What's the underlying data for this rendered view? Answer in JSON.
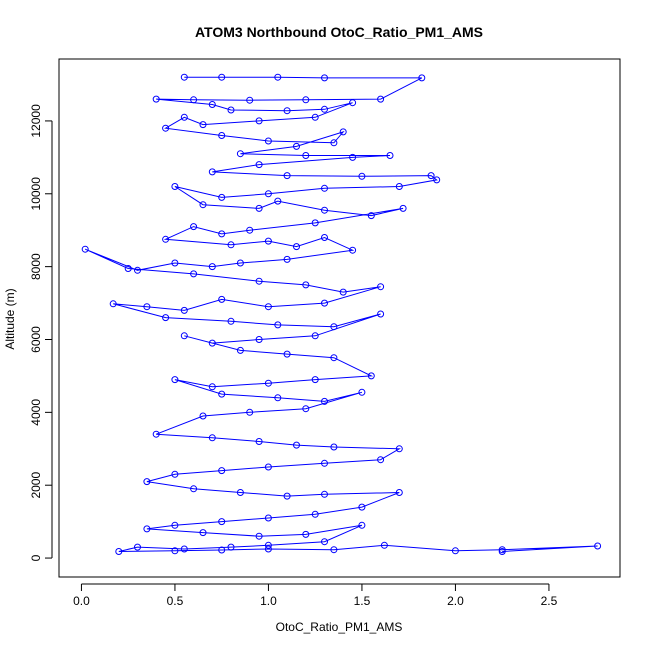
{
  "chart_data": {
    "type": "scatter",
    "title": "ATOM3 Northbound OtoC_Ratio_PM1_AMS",
    "xlabel": "OtoC_Ratio_PM1_AMS",
    "ylabel": "Altitude (m)",
    "xlim": [
      -0.12,
      2.88
    ],
    "ylim": [
      -520,
      13700
    ],
    "xticks": [
      0.0,
      0.5,
      1.0,
      1.5,
      2.0,
      2.5
    ],
    "xtick_labels": [
      "0.0",
      "0.5",
      "1.0",
      "1.5",
      "2.0",
      "2.5"
    ],
    "yticks": [
      0,
      2000,
      4000,
      6000,
      8000,
      10000,
      12000
    ],
    "ytick_labels": [
      "0",
      "2000",
      "4000",
      "6000",
      "8000",
      "10000",
      "12000"
    ],
    "grid": false,
    "legend": "none",
    "marker": "open-circle",
    "connected": true,
    "colors": {
      "series": "#0000ff",
      "axis": "#000000",
      "background": "#ffffff"
    },
    "series": [
      {
        "points": [
          [
            0.55,
            13200
          ],
          [
            0.75,
            13200
          ],
          [
            1.05,
            13200
          ],
          [
            1.3,
            13180
          ],
          [
            1.82,
            13180
          ],
          [
            1.6,
            12600
          ],
          [
            1.2,
            12580
          ],
          [
            0.9,
            12570
          ],
          [
            0.6,
            12580
          ],
          [
            0.4,
            12600
          ],
          [
            0.7,
            12450
          ],
          [
            0.8,
            12300
          ],
          [
            1.1,
            12280
          ],
          [
            1.3,
            12320
          ],
          [
            1.45,
            12500
          ],
          [
            1.25,
            12100
          ],
          [
            0.95,
            12000
          ],
          [
            0.65,
            11900
          ],
          [
            0.55,
            12100
          ],
          [
            0.45,
            11800
          ],
          [
            0.75,
            11600
          ],
          [
            1.0,
            11450
          ],
          [
            1.35,
            11400
          ],
          [
            1.4,
            11700
          ],
          [
            1.15,
            11300
          ],
          [
            0.85,
            11100
          ],
          [
            1.2,
            11050
          ],
          [
            1.65,
            11050
          ],
          [
            1.45,
            11000
          ],
          [
            0.95,
            10800
          ],
          [
            0.7,
            10600
          ],
          [
            1.1,
            10500
          ],
          [
            1.5,
            10480
          ],
          [
            1.87,
            10500
          ],
          [
            1.9,
            10380
          ],
          [
            1.7,
            10200
          ],
          [
            1.3,
            10150
          ],
          [
            1.0,
            10000
          ],
          [
            0.75,
            9900
          ],
          [
            0.5,
            10200
          ],
          [
            0.65,
            9700
          ],
          [
            0.95,
            9600
          ],
          [
            1.05,
            9800
          ],
          [
            1.3,
            9550
          ],
          [
            1.55,
            9400
          ],
          [
            1.72,
            9600
          ],
          [
            1.25,
            9200
          ],
          [
            0.9,
            9000
          ],
          [
            0.75,
            8900
          ],
          [
            0.6,
            9100
          ],
          [
            0.45,
            8750
          ],
          [
            0.8,
            8600
          ],
          [
            1.0,
            8700
          ],
          [
            1.15,
            8550
          ],
          [
            1.3,
            8800
          ],
          [
            1.45,
            8450
          ],
          [
            1.1,
            8200
          ],
          [
            0.85,
            8100
          ],
          [
            0.7,
            8000
          ],
          [
            0.5,
            8100
          ],
          [
            0.3,
            7900
          ],
          [
            0.02,
            8480
          ],
          [
            0.25,
            7950
          ],
          [
            0.6,
            7800
          ],
          [
            0.95,
            7600
          ],
          [
            1.2,
            7500
          ],
          [
            1.4,
            7300
          ],
          [
            1.6,
            7450
          ],
          [
            1.3,
            7000
          ],
          [
            1.0,
            6900
          ],
          [
            0.75,
            7100
          ],
          [
            0.55,
            6800
          ],
          [
            0.35,
            6900
          ],
          [
            0.17,
            6980
          ],
          [
            0.45,
            6600
          ],
          [
            0.8,
            6500
          ],
          [
            1.05,
            6400
          ],
          [
            1.35,
            6350
          ],
          [
            1.6,
            6700
          ],
          [
            1.25,
            6100
          ],
          [
            0.95,
            6000
          ],
          [
            0.7,
            5900
          ],
          [
            0.55,
            6100
          ],
          [
            0.85,
            5700
          ],
          [
            1.1,
            5600
          ],
          [
            1.35,
            5500
          ],
          [
            1.55,
            5000
          ],
          [
            1.25,
            4900
          ],
          [
            1.0,
            4800
          ],
          [
            0.7,
            4700
          ],
          [
            0.5,
            4900
          ],
          [
            0.75,
            4500
          ],
          [
            1.05,
            4400
          ],
          [
            1.3,
            4300
          ],
          [
            1.5,
            4550
          ],
          [
            1.2,
            4100
          ],
          [
            0.9,
            4000
          ],
          [
            0.65,
            3900
          ],
          [
            0.4,
            3400
          ],
          [
            0.7,
            3300
          ],
          [
            0.95,
            3200
          ],
          [
            1.15,
            3100
          ],
          [
            1.35,
            3050
          ],
          [
            1.7,
            3000
          ],
          [
            1.6,
            2700
          ],
          [
            1.3,
            2600
          ],
          [
            1.0,
            2500
          ],
          [
            0.75,
            2400
          ],
          [
            0.5,
            2300
          ],
          [
            0.35,
            2100
          ],
          [
            0.6,
            1900
          ],
          [
            0.85,
            1800
          ],
          [
            1.1,
            1700
          ],
          [
            1.3,
            1750
          ],
          [
            1.7,
            1800
          ],
          [
            1.5,
            1400
          ],
          [
            1.25,
            1200
          ],
          [
            1.0,
            1100
          ],
          [
            0.75,
            1000
          ],
          [
            0.5,
            900
          ],
          [
            0.35,
            800
          ],
          [
            0.65,
            700
          ],
          [
            0.95,
            600
          ],
          [
            1.2,
            650
          ],
          [
            1.5,
            900
          ],
          [
            1.3,
            450
          ],
          [
            1.0,
            350
          ],
          [
            0.8,
            300
          ],
          [
            0.55,
            250
          ],
          [
            0.3,
            300
          ],
          [
            0.2,
            180
          ],
          [
            0.5,
            200
          ],
          [
            0.75,
            220
          ],
          [
            1.0,
            250
          ],
          [
            1.35,
            230
          ],
          [
            1.62,
            350
          ],
          [
            2.0,
            200
          ],
          [
            2.25,
            230
          ],
          [
            2.76,
            330
          ],
          [
            2.25,
            180
          ]
        ]
      }
    ]
  }
}
